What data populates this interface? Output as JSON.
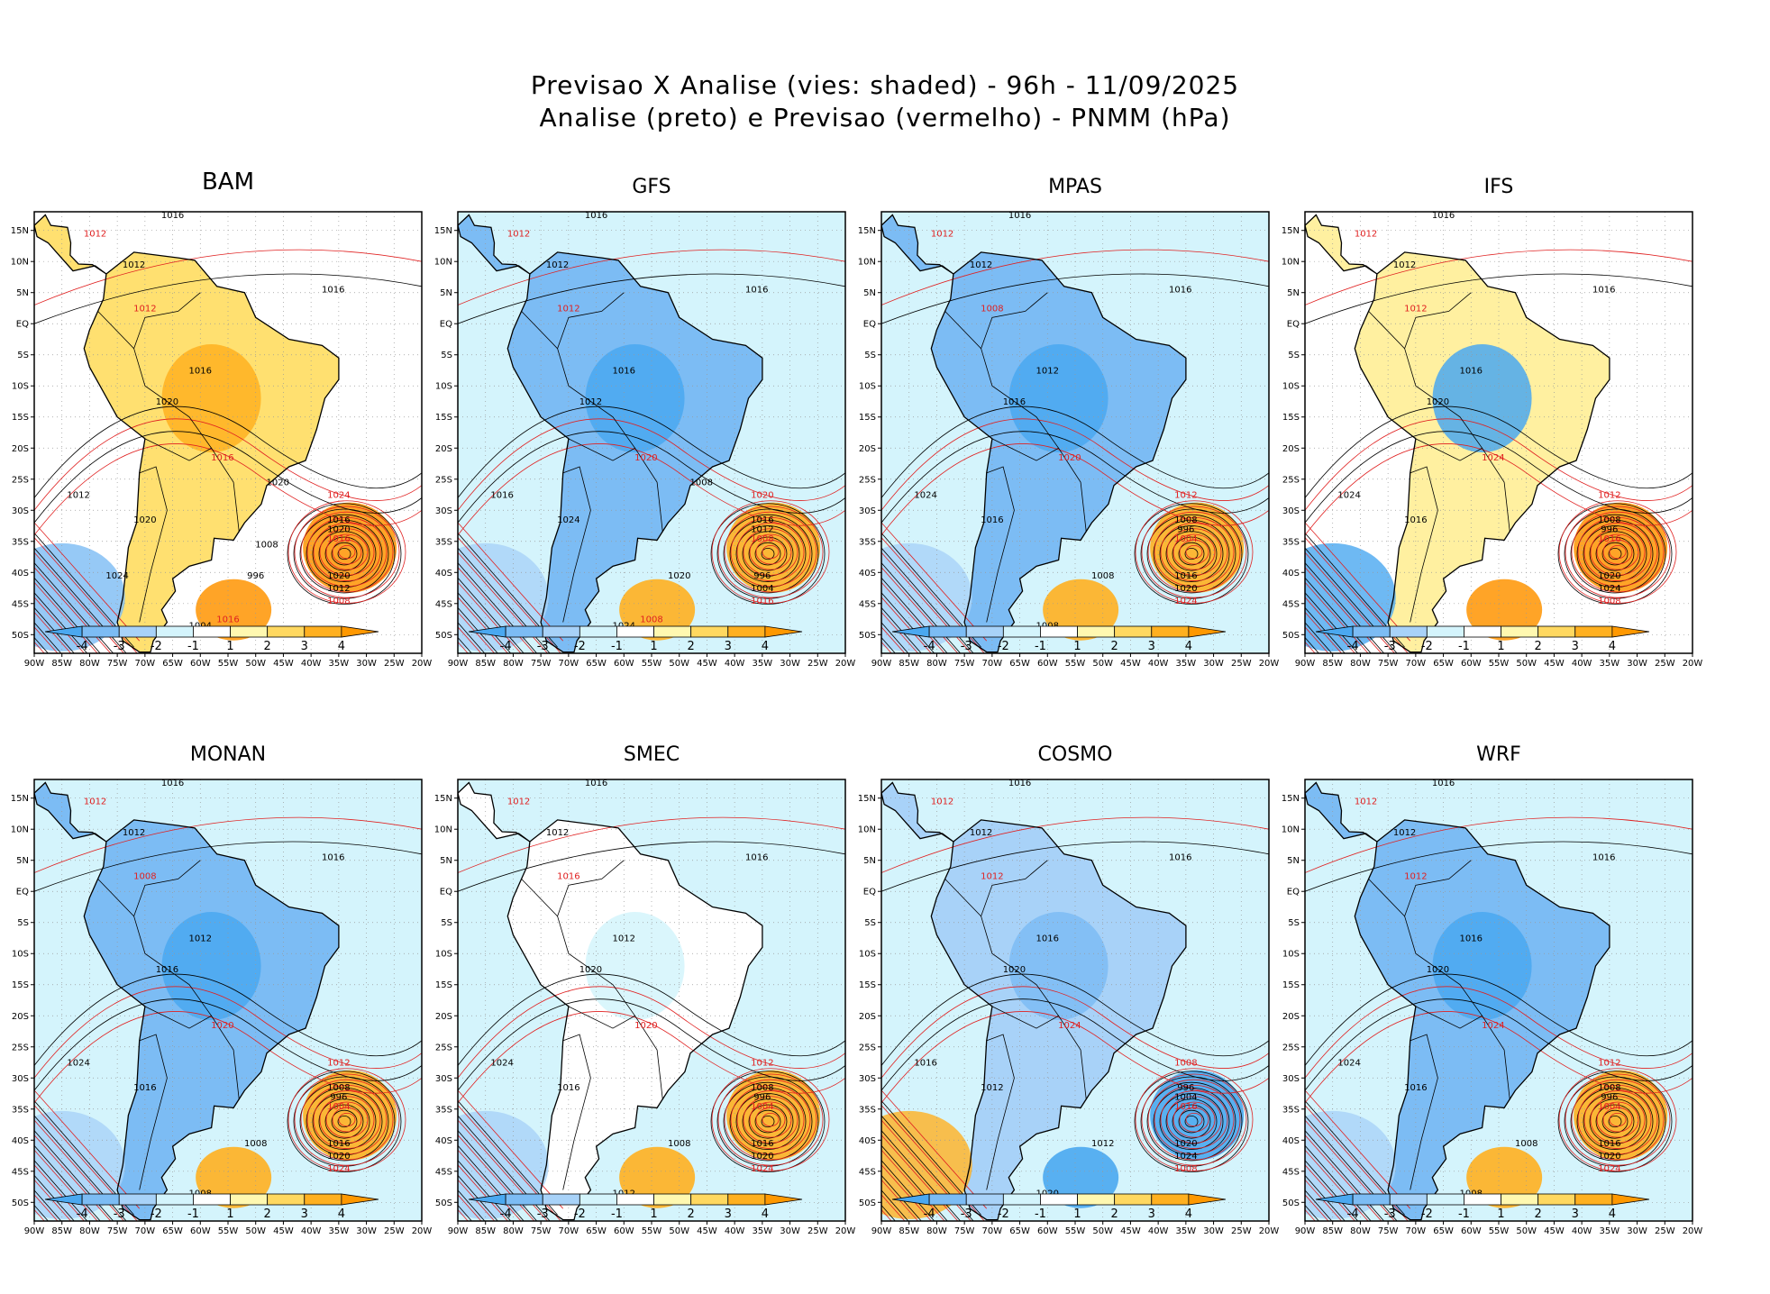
{
  "title_line1": "Previsao X Analise (vies: shaded) - 96h - 11/09/2025",
  "title_line2": "Analise (preto) e Previsao (vermelho) - PNMM (hPa)",
  "lat_labels": [
    "15N",
    "10N",
    "5N",
    "EQ",
    "5S",
    "10S",
    "15S",
    "20S",
    "25S",
    "30S",
    "35S",
    "40S",
    "45S",
    "50S"
  ],
  "lon_labels": [
    "90W",
    "85W",
    "80W",
    "75W",
    "70W",
    "65W",
    "60W",
    "55W",
    "50W",
    "45W",
    "40W",
    "35W",
    "30W",
    "25W",
    "20W"
  ],
  "colorbar": {
    "labels": [
      "-4",
      "-3",
      "-2",
      "-1",
      "1",
      "2",
      "3",
      "4"
    ],
    "colors": [
      "#4aa8f0",
      "#7cbcf4",
      "#a8d2f8",
      "#d4f4fc",
      "#ffffff",
      "#fff8b0",
      "#ffd860",
      "#ffb020",
      "#ff9800"
    ]
  },
  "contour_colors": {
    "analysis": "#000000",
    "forecast": "#e02020"
  },
  "panels": [
    {
      "name": "BAM",
      "bias": "warm",
      "labels": [
        "1016",
        "1012",
        "1012",
        "1016",
        "1012",
        "1016",
        "1020",
        "1016",
        "1012",
        "1020",
        "1024",
        "1016",
        "1020",
        "1016",
        "1020",
        "1012",
        "1008",
        "996",
        "1004",
        "1016",
        "1020",
        "1024",
        "1008",
        "1008"
      ]
    },
    {
      "name": "GFS",
      "bias": "cold",
      "labels": [
        "1016",
        "1012",
        "1012",
        "1016",
        "1012",
        "1016",
        "1012",
        "1020",
        "1016",
        "1024",
        "1020",
        "1016",
        "1012",
        "1008",
        "996",
        "1004",
        "1016",
        "1020",
        "1024",
        "1008",
        "1008"
      ]
    },
    {
      "name": "MPAS",
      "bias": "cold",
      "labels": [
        "1016",
        "1012",
        "1012",
        "1016",
        "1008",
        "1012",
        "1016",
        "1020",
        "1024",
        "1016",
        "1012",
        "1008",
        "996",
        "1004",
        "1016",
        "1020",
        "1024",
        "1008",
        "1008"
      ]
    },
    {
      "name": "IFS",
      "bias": "mixed",
      "labels": [
        "1016",
        "1012",
        "1012",
        "1016",
        "1012",
        "1016",
        "1020",
        "1024",
        "1024",
        "1016",
        "1012",
        "1008",
        "996",
        "1016",
        "1020",
        "1024",
        "1008"
      ]
    },
    {
      "name": "MONAN",
      "bias": "cold",
      "labels": [
        "1016",
        "1012",
        "1012",
        "1016",
        "1008",
        "1012",
        "1016",
        "1020",
        "1024",
        "1016",
        "1012",
        "1008",
        "996",
        "1004",
        "1016",
        "1020",
        "1024",
        "1008",
        "1008"
      ]
    },
    {
      "name": "SMEC",
      "bias": "neut",
      "labels": [
        "1016",
        "1012",
        "1012",
        "1016",
        "1016",
        "1012",
        "1020",
        "1020",
        "1024",
        "1016",
        "1012",
        "1008",
        "996",
        "1004",
        "1016",
        "1020",
        "1024",
        "1008",
        "1012"
      ]
    },
    {
      "name": "COSMO",
      "bias": "cold2",
      "labels": [
        "1016",
        "1012",
        "1012",
        "1016",
        "1012",
        "1016",
        "1020",
        "1024",
        "1016",
        "1012",
        "1008",
        "996",
        "1004",
        "1016",
        "1020",
        "1024",
        "1008",
        "1012",
        "1020"
      ]
    },
    {
      "name": "WRF",
      "bias": "cold",
      "labels": [
        "1016",
        "1012",
        "1012",
        "1016",
        "1012",
        "1016",
        "1020",
        "1024",
        "1024",
        "1016",
        "1012",
        "1008",
        "996",
        "1004",
        "1016",
        "1020",
        "1024",
        "1008",
        "1008"
      ]
    }
  ]
}
